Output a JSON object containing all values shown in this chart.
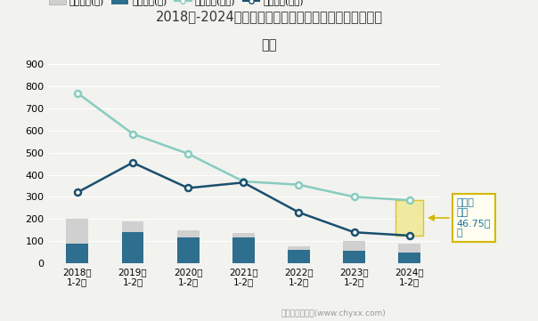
{
  "title_line1": "2018年-2024年黑龙江省全部用地土地供应与成交情况统",
  "title_line2": "计图",
  "years": [
    "2018年\n1-2月",
    "2019年\n1-2月",
    "2020年\n1-2月",
    "2021年\n1-2月",
    "2022年\n1-2月",
    "2023年\n1-2月",
    "2024年\n1-2月"
  ],
  "chuzong": [
    200,
    190,
    150,
    135,
    75,
    100,
    90
  ],
  "chengjiaozong": [
    90,
    140,
    115,
    115,
    60,
    55,
    50
  ],
  "chuzong_color": "#d0d0d0",
  "chengjiaozong_color": "#2e6e8e",
  "chujian_area": [
    770,
    585,
    495,
    370,
    355,
    300,
    285
  ],
  "chengjiao_area": [
    320,
    455,
    340,
    365,
    230,
    140,
    125
  ],
  "chujian_line_color": "#88ccc0",
  "chengjiao_line_color": "#1a4f6e",
  "ylim": [
    0,
    900
  ],
  "yticks": [
    0,
    100,
    200,
    300,
    400,
    500,
    600,
    700,
    800,
    900
  ],
  "bar_width": 0.4,
  "annotation_text": "未成交\n面积\n46.75万\n㎡",
  "annotation_color": "#1a70a0",
  "annotation_bg": "#fffef0",
  "annotation_border": "#d4b800",
  "shade_color": "#f0e888",
  "shade_alpha": 0.75,
  "bg_color": "#f2f2ee",
  "source_text": "制图：智研咨询(www.chyxx.com)",
  "legend_labels": [
    "出让宗数(宗)",
    "成交宗数(宗)",
    "出让面积(万㎡)",
    "成交面积(万㎡)"
  ]
}
